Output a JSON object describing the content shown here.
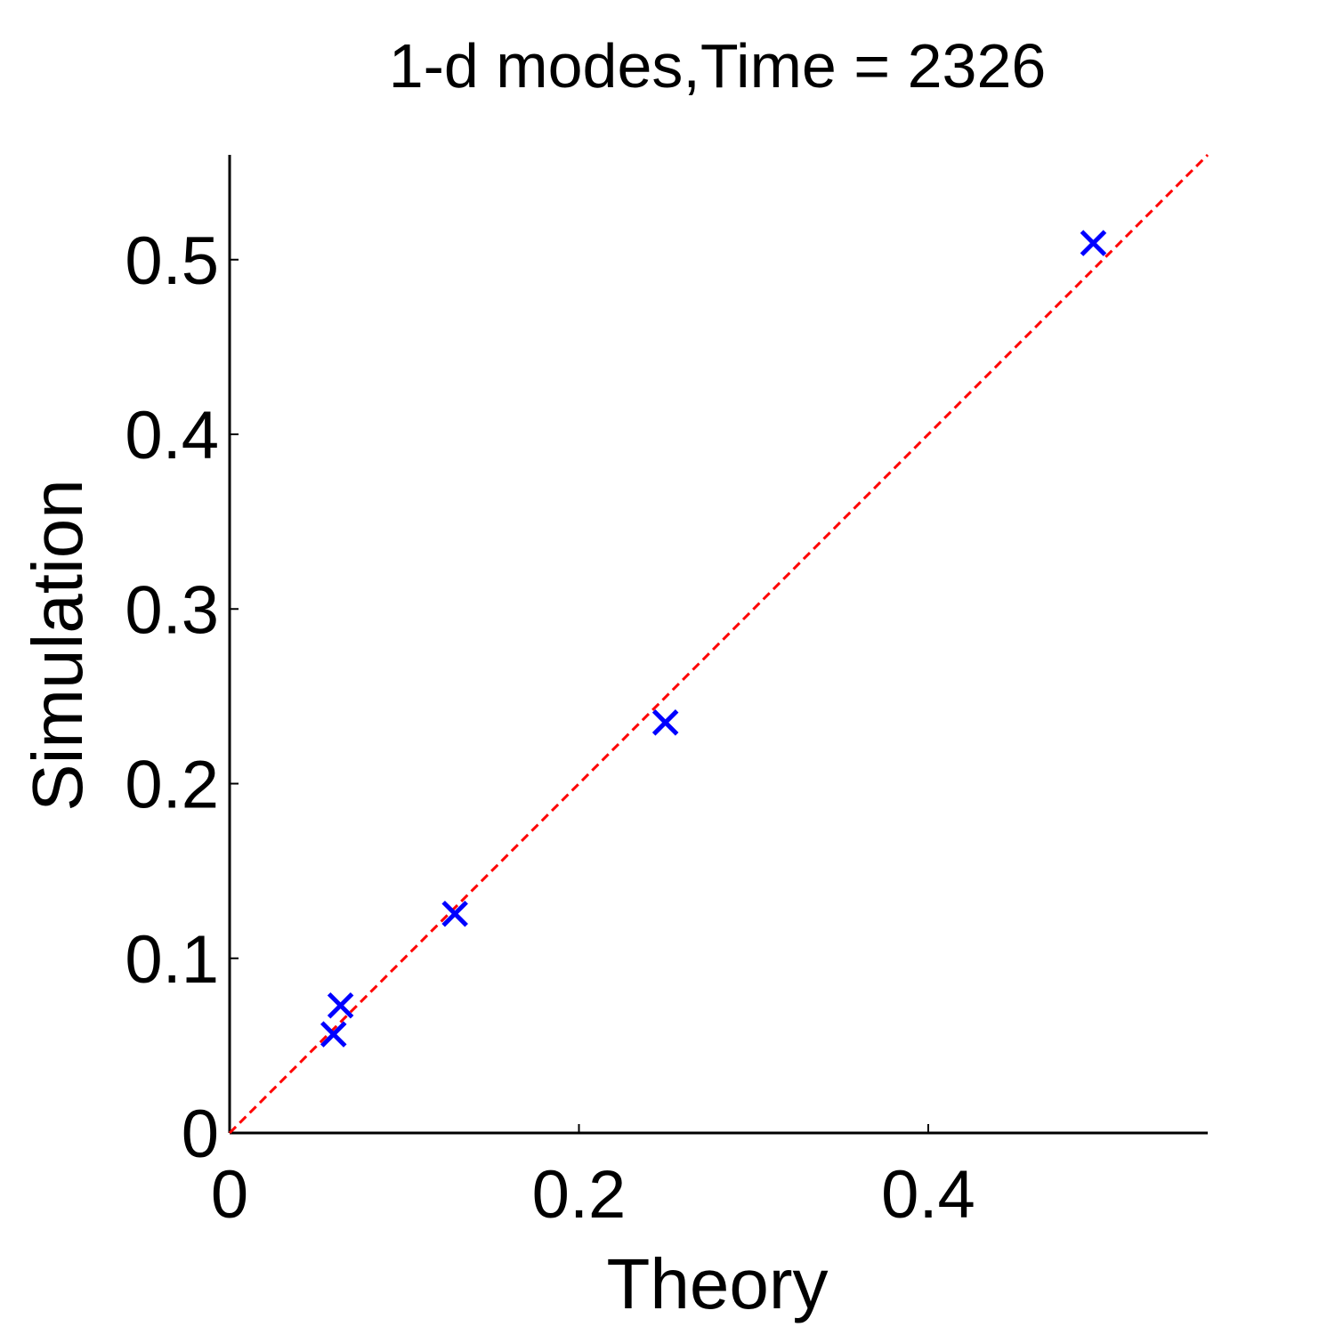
{
  "chart_data": {
    "type": "scatter",
    "title": "1-d modes,Time = 2326",
    "xlabel": "Theory",
    "ylabel": "Simulation",
    "xlim": [
      0,
      0.56
    ],
    "ylim": [
      0,
      0.56
    ],
    "x_ticks": [
      0,
      0.2,
      0.4
    ],
    "x_tick_labels": [
      "0",
      "0.2",
      "0.4"
    ],
    "y_ticks": [
      0,
      0.1,
      0.2,
      0.3,
      0.4,
      0.5
    ],
    "y_tick_labels": [
      "0",
      "0.1",
      "0.2",
      "0.3",
      "0.4",
      "0.5"
    ],
    "grid": false,
    "series": [
      {
        "marker": "x",
        "color": "#0000ff",
        "points": [
          {
            "x": 0.0595,
            "y": 0.0565
          },
          {
            "x": 0.0635,
            "y": 0.073
          },
          {
            "x": 0.129,
            "y": 0.1255
          },
          {
            "x": 0.2495,
            "y": 0.235
          },
          {
            "x": 0.4945,
            "y": 0.5095
          }
        ]
      }
    ],
    "reference_line": {
      "style": "dashed",
      "color": "#ff0000",
      "from": [
        0,
        0
      ],
      "to": [
        0.56,
        0.56
      ]
    },
    "axis_color": "#000000"
  }
}
